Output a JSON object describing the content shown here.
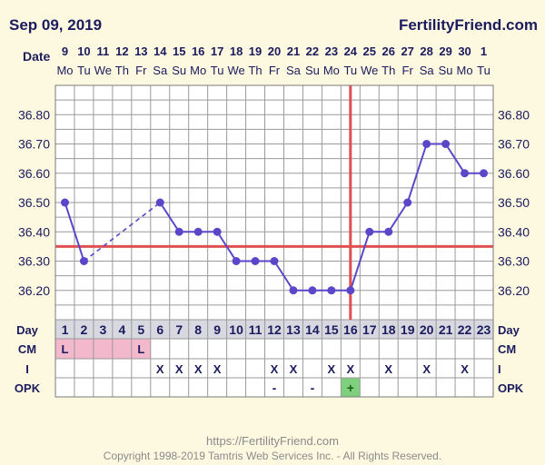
{
  "header": {
    "date_title": "Sep 09, 2019",
    "brand": "FertilityFriend.com"
  },
  "footer": {
    "url": "https://FertilityFriend.com",
    "copyright": "Copyright 1998-2019 Tamtris Web Services Inc. - All Rights Reserved."
  },
  "chart_data": {
    "type": "line",
    "title": "Sep 09, 2019",
    "row_labels": {
      "date": "Date",
      "day": "Day",
      "cm": "CM",
      "i": "I",
      "opk": "OPK"
    },
    "dates": [
      "9",
      "10",
      "11",
      "12",
      "13",
      "14",
      "15",
      "16",
      "17",
      "18",
      "19",
      "20",
      "21",
      "22",
      "23",
      "24",
      "25",
      "26",
      "27",
      "28",
      "29",
      "30",
      "1"
    ],
    "weekdays": [
      "Mo",
      "Tu",
      "We",
      "Th",
      "Fr",
      "Sa",
      "Su",
      "Mo",
      "Tu",
      "We",
      "Th",
      "Fr",
      "Sa",
      "Su",
      "Mo",
      "Tu",
      "We",
      "Th",
      "Fr",
      "Sa",
      "Su",
      "Mo",
      "Tu"
    ],
    "days": [
      1,
      2,
      3,
      4,
      5,
      6,
      7,
      8,
      9,
      10,
      11,
      12,
      13,
      14,
      15,
      16,
      17,
      18,
      19,
      20,
      21,
      22,
      23
    ],
    "temperatures": [
      36.5,
      36.3,
      null,
      null,
      null,
      36.5,
      36.4,
      36.4,
      36.4,
      36.3,
      36.3,
      36.3,
      36.2,
      36.2,
      36.2,
      36.2,
      36.4,
      36.4,
      36.5,
      36.7,
      36.7,
      36.6,
      36.6
    ],
    "dashed_segment": {
      "from_day": 2,
      "to_day": 6
    },
    "ylim": [
      36.1,
      36.9
    ],
    "y_ticks": [
      "36.20",
      "36.30",
      "36.40",
      "36.50",
      "36.60",
      "36.70",
      "36.80"
    ],
    "coverline": 36.35,
    "ovulation_day": 16,
    "cm_row": [
      "L",
      "",
      "",
      "",
      "L",
      "",
      "",
      "",
      "",
      "",
      "",
      "",
      "",
      "",
      "",
      "",
      "",
      "",
      "",
      "",
      "",
      "",
      ""
    ],
    "cm_highlight_days": [
      1,
      2,
      3,
      4,
      5
    ],
    "intercourse_row": [
      "",
      "",
      "",
      "",
      "",
      "X",
      "X",
      "X",
      "X",
      "",
      "",
      "X",
      "X",
      "",
      "X",
      "X",
      "",
      "X",
      "",
      "X",
      "",
      "X",
      ""
    ],
    "opk_row": [
      "",
      "",
      "",
      "",
      "",
      "",
      "",
      "",
      "",
      "",
      "",
      "-",
      "",
      "-",
      "",
      "+",
      "",
      "",
      "",
      "",
      "",
      "",
      ""
    ],
    "colors": {
      "line": "#5a46c8",
      "coverline": "#e05050",
      "grid": "#9a9a9a",
      "plot_bg": "#ffffff",
      "cm_highlight": "#f3b8cc",
      "opk_positive": "#7ed07e",
      "day_cell_bg": "#d8d8e0"
    }
  }
}
